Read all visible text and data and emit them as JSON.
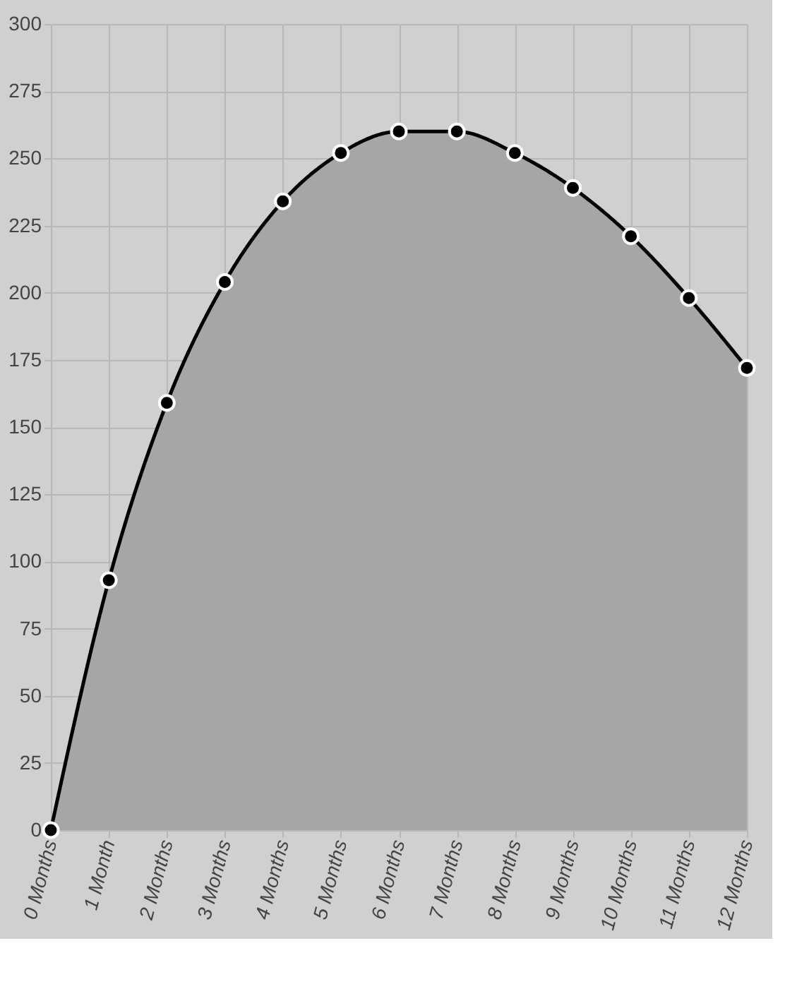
{
  "chart_data": {
    "type": "area",
    "categories": [
      "0 Months",
      "1 Month",
      "2 Months",
      "3 Months",
      "4 Months",
      "5 Months",
      "6 Months",
      "7 Months",
      "8 Months",
      "9 Months",
      "10 Months",
      "11 Months",
      "12 Months"
    ],
    "series": [
      {
        "color": "#a6a6a6",
        "values": [
          0,
          93,
          159,
          204,
          234,
          252,
          260,
          260,
          252,
          239,
          221,
          198,
          172
        ]
      }
    ],
    "ylim": [
      0,
      300
    ],
    "yticks": [
      0,
      25,
      50,
      75,
      100,
      125,
      150,
      175,
      200,
      225,
      250,
      275,
      300
    ],
    "grid": true,
    "marker": "circle",
    "line_style": "solid"
  }
}
